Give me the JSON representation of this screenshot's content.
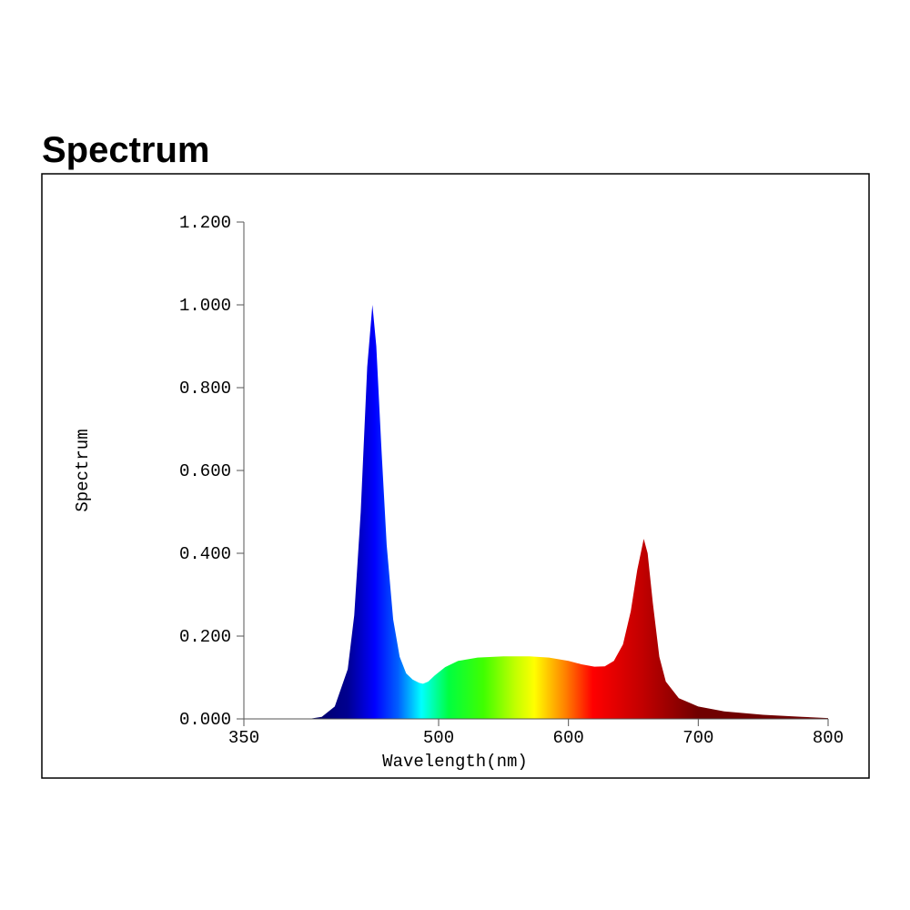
{
  "chart_data": {
    "type": "area",
    "title": "Spectrum",
    "x_label": "Wavelength(nm)",
    "y_label": "Spectrum",
    "x": [
      400,
      410,
      420,
      430,
      435,
      440,
      445,
      449,
      452,
      456,
      460,
      465,
      470,
      475,
      480,
      485,
      488,
      492,
      497,
      505,
      515,
      530,
      550,
      570,
      585,
      600,
      610,
      620,
      628,
      635,
      642,
      648,
      653,
      658,
      661,
      665,
      670,
      675,
      685,
      700,
      720,
      750,
      780,
      800
    ],
    "values": [
      0,
      0.005,
      0.03,
      0.12,
      0.25,
      0.5,
      0.85,
      1.0,
      0.9,
      0.65,
      0.42,
      0.24,
      0.15,
      0.11,
      0.095,
      0.087,
      0.085,
      0.09,
      0.105,
      0.125,
      0.14,
      0.148,
      0.151,
      0.151,
      0.148,
      0.14,
      0.132,
      0.126,
      0.127,
      0.14,
      0.18,
      0.26,
      0.36,
      0.435,
      0.4,
      0.28,
      0.15,
      0.09,
      0.05,
      0.03,
      0.018,
      0.01,
      0.005,
      0.002
    ],
    "xlim": [
      350,
      800
    ],
    "xticks": [
      350,
      500,
      600,
      700,
      800
    ],
    "ylim": [
      0,
      1.2
    ],
    "yticks": [
      {
        "value": 0,
        "label": "0.000"
      },
      {
        "value": 0.2,
        "label": "0.200"
      },
      {
        "value": 0.4,
        "label": "0.400"
      },
      {
        "value": 0.6,
        "label": "0.600"
      },
      {
        "value": 0.8,
        "label": "0.800"
      },
      {
        "value": 1.0,
        "label": "1.000"
      },
      {
        "value": 1.2,
        "label": "1.200"
      }
    ]
  }
}
